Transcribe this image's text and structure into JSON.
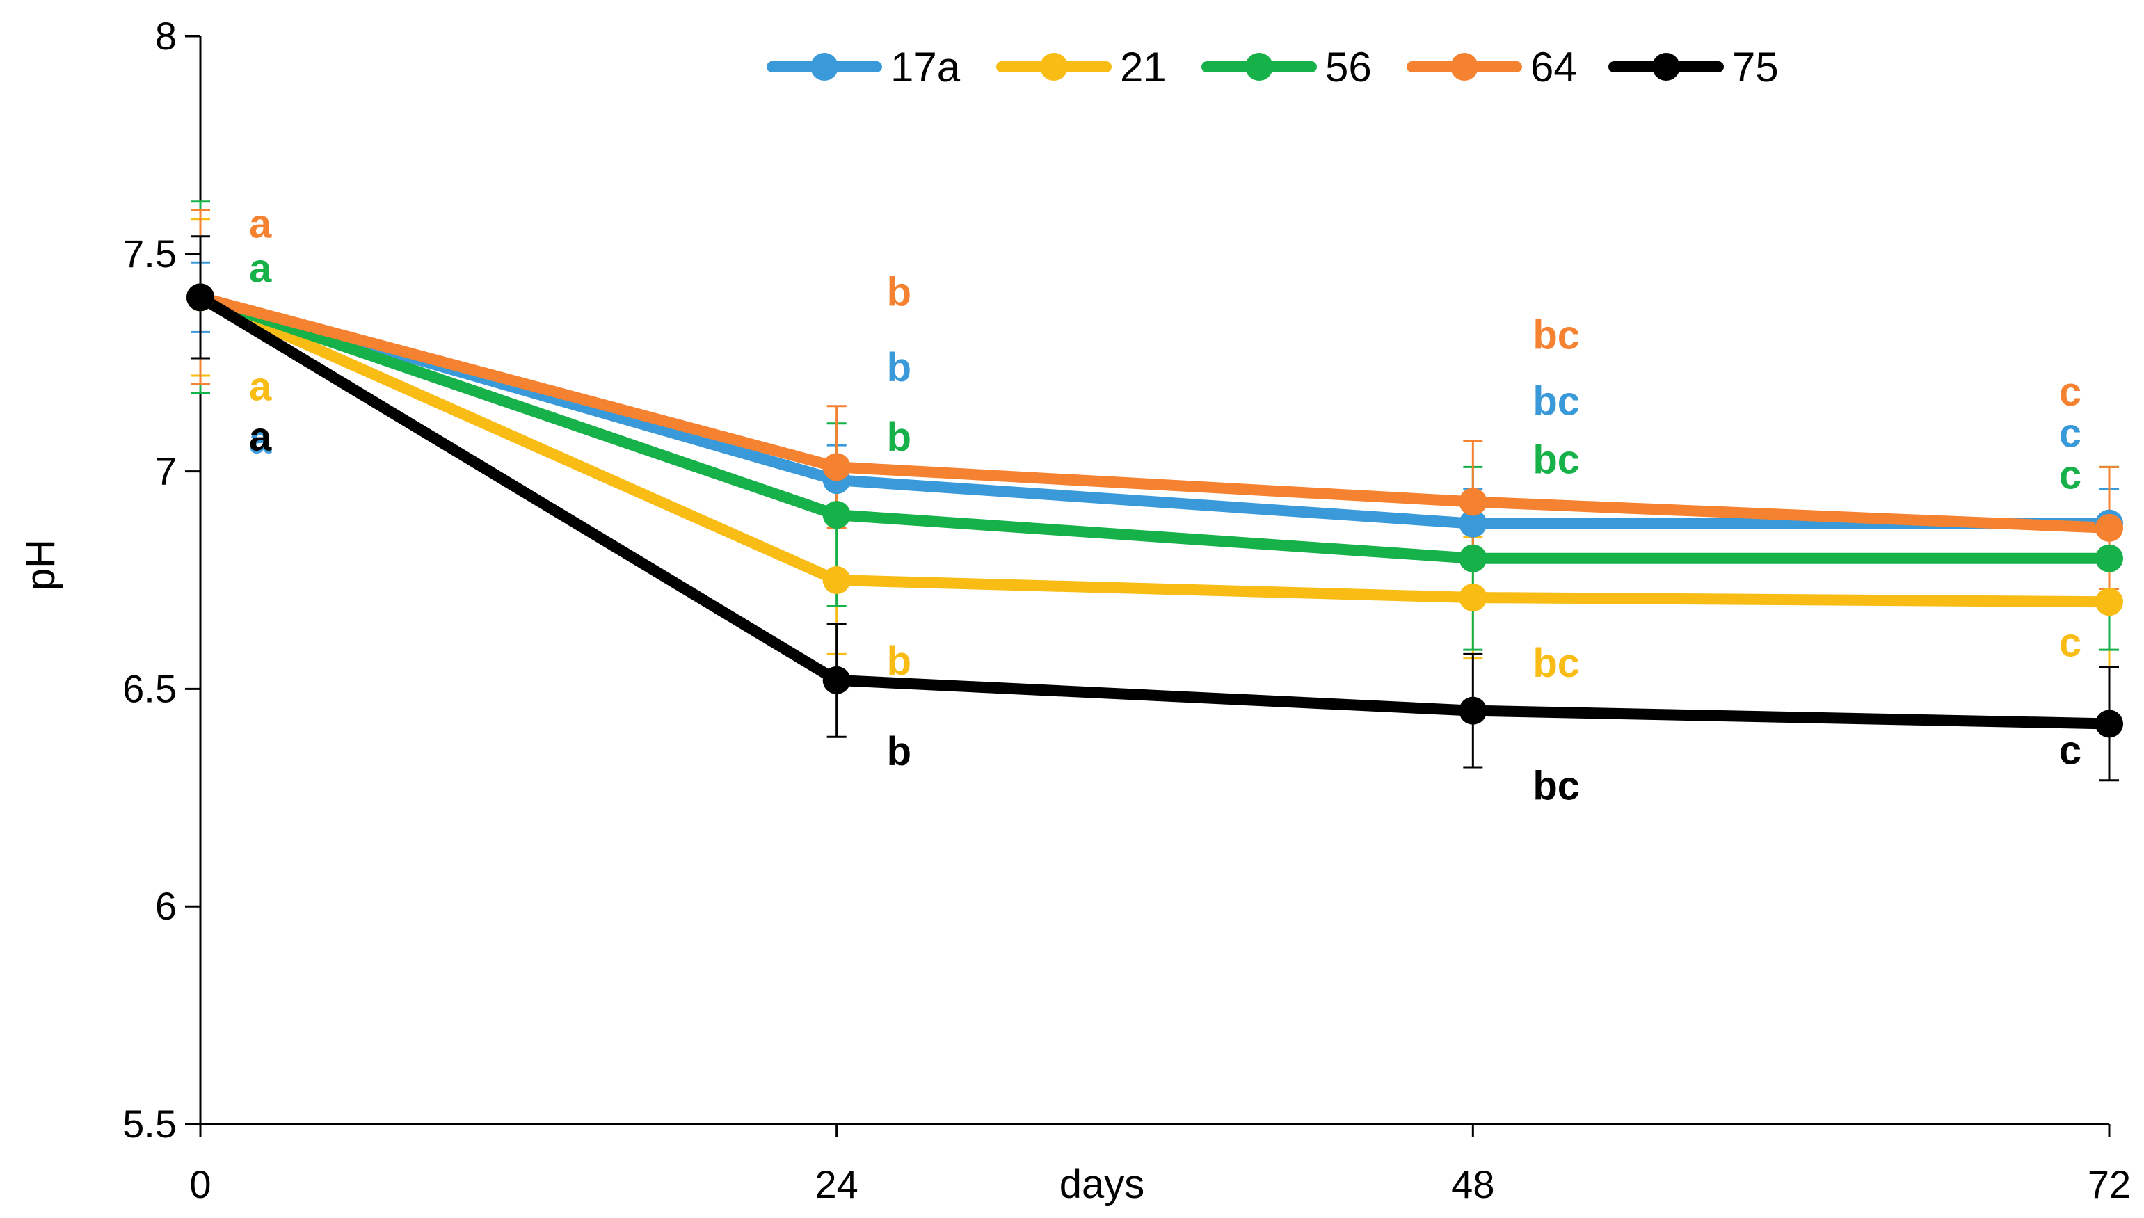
{
  "chart_data": {
    "type": "line",
    "title": "",
    "xlabel": "days",
    "ylabel": "pH",
    "x": [
      0,
      24,
      48,
      72
    ],
    "xlim": [
      0,
      72
    ],
    "ylim": [
      5.5,
      8
    ],
    "xticks": [
      0,
      24,
      48,
      72
    ],
    "yticks": [
      5.5,
      6,
      6.5,
      7,
      7.5,
      8
    ],
    "grid": false,
    "legend": "top",
    "series": [
      {
        "name": "17a",
        "color": "#3a9ad9",
        "values": [
          7.4,
          6.98,
          6.88,
          6.88
        ],
        "errors": [
          0.08,
          0.08,
          0.08,
          0.08
        ],
        "sig_labels": [
          "a",
          "b",
          "bc",
          "c"
        ]
      },
      {
        "name": "21",
        "color": "#f8bc14",
        "values": [
          7.4,
          6.75,
          6.71,
          6.7
        ],
        "errors": [
          0.18,
          0.17,
          0.14,
          0.15
        ],
        "sig_labels": [
          "a",
          "b",
          "bc",
          "c"
        ]
      },
      {
        "name": "56",
        "color": "#17b14a",
        "values": [
          7.4,
          6.9,
          6.8,
          6.8
        ],
        "errors": [
          0.22,
          0.21,
          0.21,
          0.21
        ],
        "sig_labels": [
          "a",
          "b",
          "bc",
          "c"
        ]
      },
      {
        "name": "64",
        "color": "#f58231",
        "values": [
          7.4,
          7.01,
          6.93,
          6.87
        ],
        "errors": [
          0.2,
          0.14,
          0.14,
          0.14
        ],
        "sig_labels": [
          "a",
          "b",
          "bc",
          "c"
        ]
      },
      {
        "name": "75",
        "color": "#000000",
        "values": [
          7.4,
          6.52,
          6.45,
          6.42
        ],
        "errors": [
          0.14,
          0.13,
          0.13,
          0.13
        ],
        "sig_labels": [
          "a",
          "b",
          "bc",
          "c"
        ]
      }
    ]
  }
}
